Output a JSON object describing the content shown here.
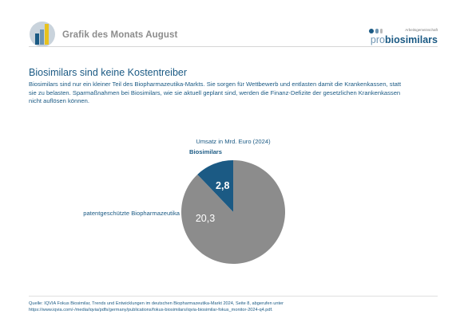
{
  "header": {
    "title": "Grafik des Monats August"
  },
  "brand": {
    "tagline": "Arbeitsgemeinschaft",
    "name_pro": "pro",
    "name_bio": "biosimilars",
    "colors": {
      "dark": "#1b5a84",
      "light": "#6f96b3",
      "gray": "#b9b9b9"
    }
  },
  "main": {
    "title": "Biosimilars sind keine Kostentreiber",
    "body": "Biosimilars sind nur ein kleiner Teil des Biopharmazeutika-Markts. Sie sorgen für Wettbewerb und entlasten damit die Krankenkassen, statt sie zu belasten. Sparmaßnahmen bei Biosimilars, wie sie aktuell geplant sind, werden die Finanz-Defizite der gesetzlichen Krankenkassen nicht auflösen können."
  },
  "chart_data": {
    "type": "pie",
    "title": "Umsatz in Mrd. Euro (2024)",
    "slices": [
      {
        "label": "Biosimilars",
        "value": 2.8,
        "display": "2,8",
        "color": "#1b5a84"
      },
      {
        "label": "patentgeschützte Biopharmazeutika",
        "value": 20.3,
        "display": "20,3",
        "color": "#8c8c8c"
      }
    ]
  },
  "source": {
    "line1": "Quelle: IQVIA Fokus Biosimilar, Trends und Entwicklungen im deutschen Biopharmazeutika-Markt 2024, Seite 8, abgerufen unter",
    "line2": "https://www.iqvia.com/-/media/iqvia/pdfs/germany/publications/fokus-biosimilars/iqvia-biosimilar-fokus_monitor-2024-q4.pdf."
  }
}
